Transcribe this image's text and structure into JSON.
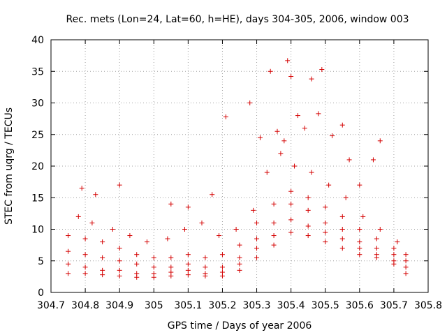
{
  "chart_data": {
    "type": "scatter",
    "title": "Rec. mets (Lon=24, Lat=60, h=HE), days 304-305, 2006, window 003",
    "xlabel": "GPS time / Days of year 2006",
    "ylabel": "STEC from uqrg / TECUs",
    "xlim": [
      304.7,
      305.8
    ],
    "ylim": [
      0,
      40
    ],
    "xticks": [
      "304.7",
      "304.8",
      "304.9",
      "305",
      "305.1",
      "305.2",
      "305.3",
      "305.4",
      "305.5",
      "305.6",
      "305.7",
      "305.8"
    ],
    "yticks": [
      "0",
      "5",
      "10",
      "15",
      "20",
      "25",
      "30",
      "35",
      "40"
    ],
    "grid": true,
    "marker": "+",
    "color": "#d40000",
    "tracks": [
      {
        "x": [
          304.75,
          304.8,
          304.85,
          304.9,
          304.95,
          305.0,
          305.05,
          305.1,
          305.15,
          305.2,
          305.25,
          305.3,
          305.35,
          305.4,
          305.45,
          305.5,
          305.55,
          305.6,
          305.65,
          305.7,
          305.735
        ],
        "y": [
          3.0,
          3.0,
          2.8,
          2.6,
          2.4,
          2.4,
          2.6,
          2.8,
          2.6,
          2.6,
          3.5,
          5.5,
          7.5,
          9.5,
          9.0,
          8.0,
          7.0,
          6.0,
          5.5,
          4.5,
          3.0
        ]
      },
      {
        "x": [
          304.75,
          304.8,
          304.85,
          304.9,
          304.95,
          305.0,
          305.05,
          305.1,
          305.15,
          305.2,
          305.25,
          305.3,
          305.35,
          305.4,
          305.45,
          305.5,
          305.55,
          305.6,
          305.65,
          305.7,
          305.735
        ],
        "y": [
          4.5,
          4.0,
          3.5,
          3.5,
          3.0,
          3.0,
          3.2,
          3.5,
          3.0,
          3.2,
          4.5,
          7.0,
          9.0,
          11.5,
          10.5,
          9.5,
          8.5,
          7.0,
          6.0,
          5.0,
          4.0
        ]
      },
      {
        "x": [
          304.75,
          304.8,
          304.85,
          304.9,
          304.95,
          305.0,
          305.05,
          305.1,
          305.15,
          305.2,
          305.25,
          305.3,
          305.35,
          305.4,
          305.45,
          305.5,
          305.55,
          305.6,
          305.65,
          305.7,
          305.735
        ],
        "y": [
          6.5,
          6.0,
          5.5,
          5.0,
          4.5,
          4.0,
          4.0,
          4.5,
          4.0,
          4.0,
          5.5,
          8.5,
          11.0,
          14.0,
          13.0,
          11.0,
          10.0,
          8.0,
          7.0,
          6.0,
          5.0
        ]
      },
      {
        "x": [
          304.75,
          304.8,
          304.85,
          304.9,
          304.95,
          305.0,
          305.05,
          305.1,
          305.15,
          305.2,
          305.25,
          305.3,
          305.35,
          305.4,
          305.45,
          305.5,
          305.55,
          305.6,
          305.65,
          305.7,
          305.735
        ],
        "y": [
          9.0,
          8.5,
          8.0,
          7.0,
          6.0,
          5.5,
          5.5,
          6.0,
          5.5,
          6.0,
          7.5,
          11.0,
          14.0,
          16.0,
          15.0,
          13.5,
          12.0,
          10.0,
          8.5,
          7.0,
          6.0
        ]
      },
      {
        "x": [
          304.78,
          304.82,
          304.88,
          304.93,
          304.98,
          305.04,
          305.09,
          305.14,
          305.19,
          305.24,
          305.29,
          305.33,
          305.37,
          305.41,
          305.46,
          305.51,
          305.56,
          305.61,
          305.66,
          305.71
        ],
        "y": [
          12.0,
          11.0,
          10.0,
          9.0,
          8.0,
          8.5,
          10.0,
          11.0,
          9.0,
          10.0,
          13.0,
          19.0,
          22.0,
          20.0,
          19.0,
          17.0,
          15.0,
          12.0,
          10.0,
          8.0
        ]
      },
      {
        "x": [
          304.79,
          304.83,
          304.9,
          305.05,
          305.1,
          305.17,
          305.21,
          305.28,
          305.31,
          305.34,
          305.36,
          305.38,
          305.39,
          305.4,
          305.42,
          305.44,
          305.46,
          305.48,
          305.49,
          305.52,
          305.55,
          305.57,
          305.6,
          305.64,
          305.66
        ],
        "y": [
          16.5,
          15.5,
          17.0,
          14.0,
          13.5,
          15.5,
          27.8,
          30.0,
          24.5,
          35.0,
          25.5,
          24.0,
          36.7,
          34.2,
          28.0,
          26.0,
          33.8,
          28.3,
          35.3,
          24.8,
          26.5,
          21.0,
          17.0,
          21.0,
          24.0
        ]
      }
    ]
  }
}
